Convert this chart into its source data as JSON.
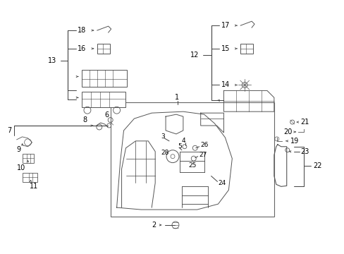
{
  "background_color": "#ffffff",
  "line_color": "#404040",
  "text_color": "#000000",
  "fig_width": 4.89,
  "fig_height": 3.6,
  "dpi": 100
}
